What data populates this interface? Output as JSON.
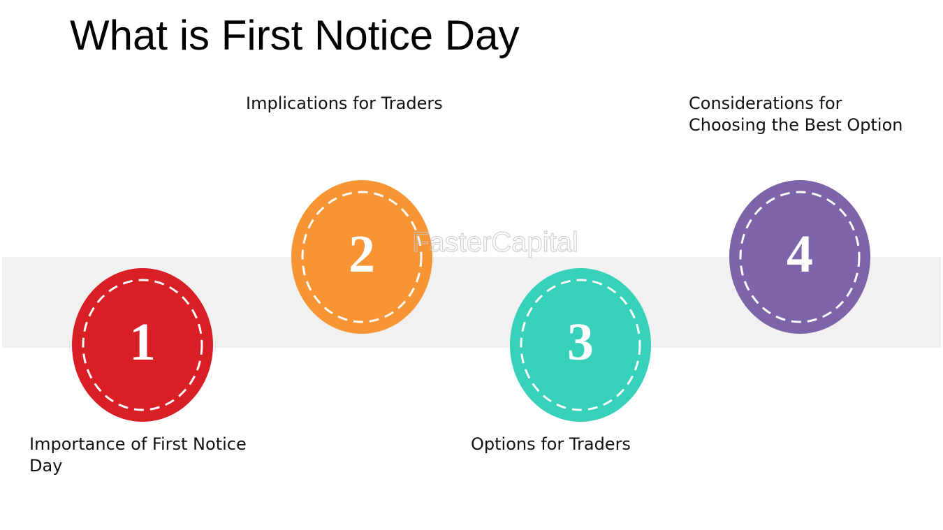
{
  "title": "What is First Notice Day",
  "watermark": "FasterCapital",
  "steps": [
    {
      "number": "1",
      "label": "Importance of First Notice Day"
    },
    {
      "number": "2",
      "label": "Implications for Traders"
    },
    {
      "number": "3",
      "label": "Options for Traders"
    },
    {
      "number": "4",
      "label": "Considerations for Choosing the Best Option"
    }
  ]
}
